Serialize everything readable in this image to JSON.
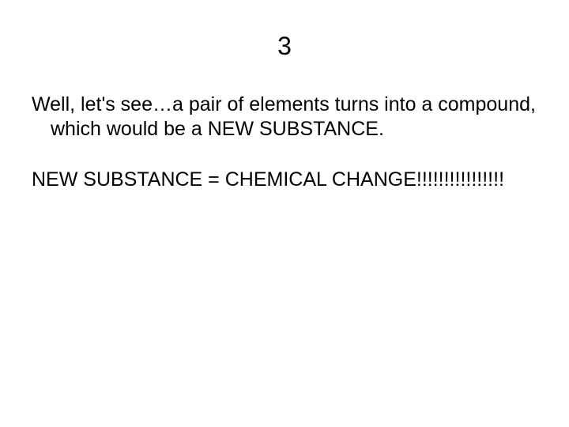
{
  "slide": {
    "title": "3",
    "paragraph1": "Well, let's see…a pair of elements turns into a compound, which would be a NEW SUBSTANCE.",
    "paragraph2": "NEW SUBSTANCE = CHEMICAL CHANGE!!!!!!!!!!!!!!!!",
    "background_color": "#ffffff",
    "text_color": "#000000",
    "title_fontsize": 32,
    "body_fontsize": 25,
    "font_family": "Arial"
  }
}
